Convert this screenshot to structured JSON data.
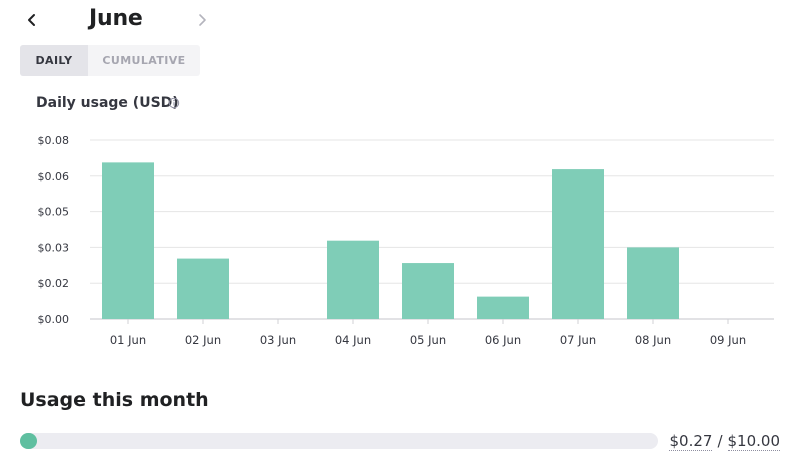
{
  "header": {
    "month": "June",
    "prev_icon": "chevron-left-icon",
    "next_icon": "chevron-right-icon"
  },
  "toggle": {
    "daily": "DAILY",
    "cumulative": "CUMULATIVE",
    "selected": "daily"
  },
  "chart": {
    "title": "Daily usage (USD)",
    "info_icon": "info-icon"
  },
  "chart_data": {
    "type": "bar",
    "title": "Daily usage (USD)",
    "xlabel": "",
    "ylabel": "",
    "categories": [
      "01 Jun",
      "02 Jun",
      "03 Jun",
      "04 Jun",
      "05 Jun",
      "06 Jun",
      "07 Jun",
      "08 Jun",
      "09 Jun"
    ],
    "values": [
      0.07,
      0.027,
      0,
      0.035,
      0.025,
      0.01,
      0.067,
      0.032,
      0
    ],
    "ylim": [
      0,
      0.08
    ],
    "yticks": [
      0,
      0.016,
      0.032,
      0.048,
      0.064,
      0.08
    ],
    "ytick_labels": [
      "$0.00",
      "$0.02",
      "$0.03",
      "$0.05",
      "$0.06",
      "$0.08"
    ],
    "grid": true,
    "bar_color": "#7fcdb7",
    "grid_color": "#e5e5e5",
    "tick_label_color": "#353740"
  },
  "usage": {
    "title": "Usage this month",
    "used": "$0.27",
    "limit": "$10.00",
    "separator": "/",
    "used_value": 0.27,
    "limit_value": 10.0,
    "fill_color": "#5fbfa0"
  }
}
